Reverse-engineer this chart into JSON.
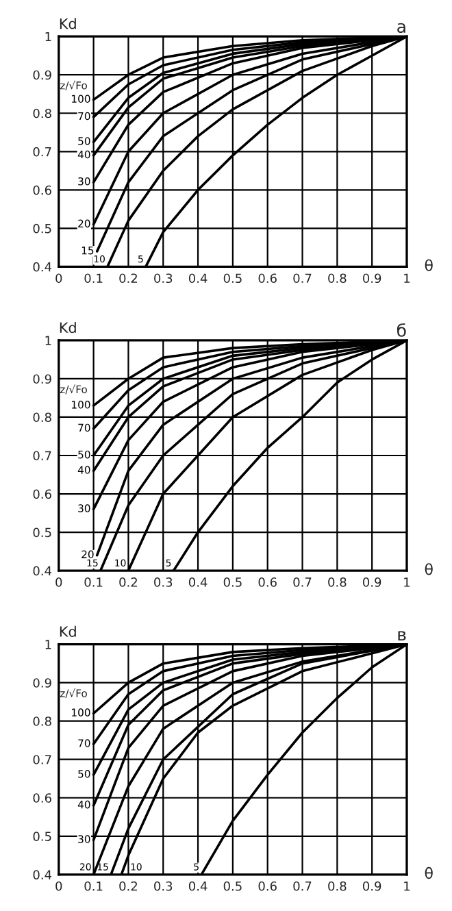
{
  "chart_data": [
    {
      "type": "line",
      "title": "а",
      "xlabel": "θ",
      "ylabel": "Kd",
      "legend_title": "z/√Fo",
      "grid": true,
      "legend": false,
      "marker": "none",
      "line_style": "solid",
      "xlim": [
        0,
        1
      ],
      "ylim": [
        0.4,
        1
      ],
      "xticks": [
        0,
        0.1,
        0.2,
        0.3,
        0.4,
        0.5,
        0.6,
        0.7,
        0.8,
        0.9,
        1
      ],
      "yticks": [
        0.4,
        0.5,
        0.6,
        0.7,
        0.8,
        0.9,
        1
      ],
      "series": [
        {
          "name": "100",
          "color": "#000000",
          "x": [
            0.1,
            0.2,
            0.3,
            0.5,
            0.7,
            1
          ],
          "values": [
            0.835,
            0.9,
            0.945,
            0.975,
            0.99,
            1
          ]
        },
        {
          "name": "70",
          "color": "#000000",
          "x": [
            0.1,
            0.2,
            0.3,
            0.5,
            0.7,
            1
          ],
          "values": [
            0.79,
            0.875,
            0.925,
            0.965,
            0.985,
            1
          ]
        },
        {
          "name": "50",
          "color": "#000000",
          "x": [
            0.1,
            0.2,
            0.3,
            0.5,
            0.7,
            1
          ],
          "values": [
            0.725,
            0.84,
            0.905,
            0.955,
            0.98,
            1
          ]
        },
        {
          "name": "40",
          "color": "#000000",
          "x": [
            0.1,
            0.2,
            0.3,
            0.5,
            0.7,
            1
          ],
          "values": [
            0.69,
            0.815,
            0.89,
            0.945,
            0.975,
            1
          ]
        },
        {
          "name": "30",
          "color": "#000000",
          "x": [
            0.1,
            0.2,
            0.3,
            0.5,
            0.7,
            1
          ],
          "values": [
            0.62,
            0.77,
            0.855,
            0.93,
            0.97,
            1
          ]
        },
        {
          "name": "20",
          "color": "#000000",
          "x": [
            0.1,
            0.2,
            0.3,
            0.5,
            0.7,
            1
          ],
          "values": [
            0.51,
            0.7,
            0.8,
            0.9,
            0.955,
            1
          ]
        },
        {
          "name": "15",
          "color": "#000000",
          "x": [
            0.11,
            0.2,
            0.3,
            0.5,
            0.7,
            1
          ],
          "values": [
            0.44,
            0.62,
            0.74,
            0.86,
            0.94,
            1
          ]
        },
        {
          "name": "10",
          "color": "#000000",
          "x": [
            0.14,
            0.2,
            0.3,
            0.4,
            0.5,
            0.7,
            0.9,
            1
          ],
          "values": [
            0.4,
            0.52,
            0.65,
            0.74,
            0.81,
            0.91,
            0.975,
            1
          ]
        },
        {
          "name": "5",
          "color": "#000000",
          "x": [
            0.25,
            0.3,
            0.4,
            0.5,
            0.6,
            0.7,
            0.8,
            0.9,
            1
          ],
          "values": [
            0.4,
            0.49,
            0.6,
            0.69,
            0.77,
            0.84,
            0.9,
            0.95,
            1
          ]
        }
      ]
    },
    {
      "type": "line",
      "title": "б",
      "xlabel": "θ",
      "ylabel": "Kd",
      "legend_title": "z/√Fo",
      "grid": true,
      "legend": false,
      "marker": "none",
      "line_style": "solid",
      "xlim": [
        0,
        1
      ],
      "ylim": [
        0.4,
        1
      ],
      "xticks": [
        0,
        0.1,
        0.2,
        0.3,
        0.4,
        0.5,
        0.6,
        0.7,
        0.8,
        0.9,
        1
      ],
      "yticks": [
        0.4,
        0.5,
        0.6,
        0.7,
        0.8,
        0.9,
        1
      ],
      "series": [
        {
          "name": "100",
          "color": "#000000",
          "x": [
            0.1,
            0.2,
            0.3,
            0.5,
            0.7,
            1
          ],
          "values": [
            0.83,
            0.9,
            0.955,
            0.98,
            0.99,
            1
          ]
        },
        {
          "name": "70",
          "color": "#000000",
          "x": [
            0.1,
            0.2,
            0.3,
            0.5,
            0.7,
            1
          ],
          "values": [
            0.77,
            0.87,
            0.93,
            0.97,
            0.985,
            1
          ]
        },
        {
          "name": "50",
          "color": "#000000",
          "x": [
            0.1,
            0.2,
            0.3,
            0.5,
            0.7,
            1
          ],
          "values": [
            0.7,
            0.83,
            0.9,
            0.96,
            0.98,
            1
          ]
        },
        {
          "name": "40",
          "color": "#000000",
          "x": [
            0.1,
            0.2,
            0.3,
            0.5,
            0.7,
            1
          ],
          "values": [
            0.66,
            0.8,
            0.88,
            0.95,
            0.975,
            1
          ]
        },
        {
          "name": "30",
          "color": "#000000",
          "x": [
            0.1,
            0.2,
            0.3,
            0.5,
            0.7,
            1
          ],
          "values": [
            0.56,
            0.74,
            0.84,
            0.93,
            0.97,
            1
          ]
        },
        {
          "name": "20",
          "color": "#000000",
          "x": [
            0.11,
            0.2,
            0.3,
            0.5,
            0.7,
            1
          ],
          "values": [
            0.44,
            0.66,
            0.78,
            0.9,
            0.955,
            1
          ]
        },
        {
          "name": "15",
          "color": "#000000",
          "x": [
            0.12,
            0.2,
            0.3,
            0.5,
            0.7,
            1
          ],
          "values": [
            0.4,
            0.57,
            0.7,
            0.86,
            0.94,
            1
          ]
        },
        {
          "name": "10",
          "color": "#000000",
          "x": [
            0.2,
            0.3,
            0.4,
            0.5,
            0.7,
            0.9,
            1
          ],
          "values": [
            0.4,
            0.6,
            0.7,
            0.8,
            0.91,
            0.975,
            1
          ]
        },
        {
          "name": "5",
          "color": "#000000",
          "x": [
            0.33,
            0.4,
            0.5,
            0.6,
            0.7,
            0.8,
            0.9,
            1
          ],
          "values": [
            0.4,
            0.5,
            0.62,
            0.72,
            0.8,
            0.89,
            0.95,
            1
          ]
        }
      ]
    },
    {
      "type": "line",
      "title": "в",
      "xlabel": "θ",
      "ylabel": "Kd",
      "legend_title": "z/√Fo",
      "grid": true,
      "legend": false,
      "marker": "none",
      "line_style": "solid",
      "xlim": [
        0,
        1
      ],
      "ylim": [
        0.4,
        1
      ],
      "xticks": [
        0,
        0.1,
        0.2,
        0.3,
        0.4,
        0.5,
        0.6,
        0.7,
        0.8,
        0.9,
        1
      ],
      "yticks": [
        0.4,
        0.5,
        0.6,
        0.7,
        0.8,
        0.9,
        1
      ],
      "series": [
        {
          "name": "100",
          "color": "#000000",
          "x": [
            0.1,
            0.2,
            0.3,
            0.5,
            0.7,
            1
          ],
          "values": [
            0.82,
            0.9,
            0.95,
            0.98,
            0.99,
            1
          ]
        },
        {
          "name": "70",
          "color": "#000000",
          "x": [
            0.1,
            0.2,
            0.3,
            0.5,
            0.7,
            1
          ],
          "values": [
            0.74,
            0.87,
            0.93,
            0.97,
            0.985,
            1
          ]
        },
        {
          "name": "50",
          "color": "#000000",
          "x": [
            0.1,
            0.2,
            0.3,
            0.5,
            0.7,
            1
          ],
          "values": [
            0.66,
            0.83,
            0.9,
            0.96,
            0.98,
            1
          ]
        },
        {
          "name": "40",
          "color": "#000000",
          "x": [
            0.1,
            0.2,
            0.3,
            0.5,
            0.7,
            1
          ],
          "values": [
            0.58,
            0.79,
            0.88,
            0.95,
            0.975,
            1
          ]
        },
        {
          "name": "30",
          "color": "#000000",
          "x": [
            0.1,
            0.2,
            0.3,
            0.5,
            0.7,
            1
          ],
          "values": [
            0.49,
            0.73,
            0.84,
            0.93,
            0.97,
            1
          ]
        },
        {
          "name": "20",
          "color": "#000000",
          "x": [
            0.1,
            0.2,
            0.3,
            0.5,
            0.7,
            1
          ],
          "values": [
            0.4,
            0.63,
            0.78,
            0.9,
            0.955,
            1
          ]
        },
        {
          "name": "15",
          "color": "#000000",
          "x": [
            0.15,
            0.2,
            0.3,
            0.5,
            0.7,
            1
          ],
          "values": [
            0.4,
            0.52,
            0.7,
            0.87,
            0.95,
            1
          ]
        },
        {
          "name": "10",
          "color": "#000000",
          "x": [
            0.18,
            0.2,
            0.3,
            0.4,
            0.5,
            0.7,
            1
          ],
          "values": [
            0.4,
            0.45,
            0.65,
            0.77,
            0.84,
            0.93,
            1
          ]
        },
        {
          "name": "5",
          "color": "#000000",
          "x": [
            0.41,
            0.5,
            0.6,
            0.7,
            0.8,
            0.9,
            1
          ],
          "values": [
            0.4,
            0.54,
            0.66,
            0.77,
            0.86,
            0.94,
            1
          ]
        }
      ]
    }
  ]
}
